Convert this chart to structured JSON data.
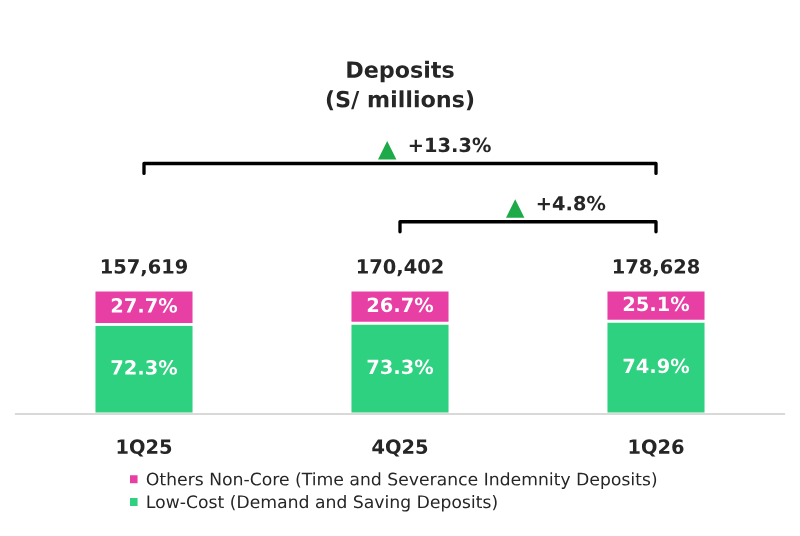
{
  "chart_data": {
    "type": "bar",
    "title": "Deposits",
    "subtitle": "(S/ millions)",
    "categories": [
      "1Q25",
      "4Q25",
      "1Q26"
    ],
    "stacked": true,
    "tick_labels": "x",
    "series": [
      {
        "name": "Low-Cost (Demand and Saving Deposits)",
        "color": "#2dd17f",
        "values": [
          72.3,
          73.3,
          74.9
        ],
        "value_labels": [
          "72.3%",
          "73.3%",
          "74.9%"
        ]
      },
      {
        "name": "Others Non-Core (Time and Severance Indemnity Deposits)",
        "color": "#e83fa5",
        "values": [
          27.7,
          26.7,
          25.1
        ],
        "value_labels": [
          "27.7%",
          "26.7%",
          "25.1%"
        ]
      }
    ],
    "annotations": [
      {
        "text": "157,619",
        "x": "1Q25",
        "y": 100
      },
      {
        "text": "170,402",
        "x": "4Q25",
        "y": 100
      },
      {
        "text": "178,628",
        "x": "1Q26",
        "y": 100
      },
      "+13.3%",
      "+4.8%"
    ],
    "grid": false,
    "legend": "bottom"
  }
}
